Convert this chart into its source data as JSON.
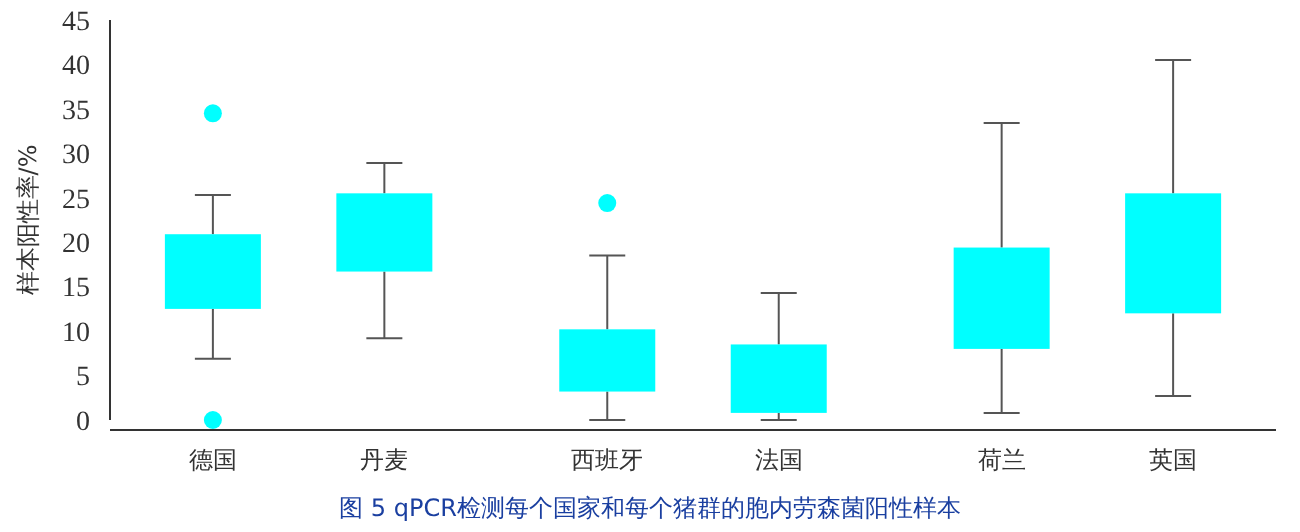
{
  "chart_data": {
    "type": "box",
    "title": "图 5 qPCR检测每个国家和每个猪群的胞内劳森菌阳性样本",
    "ylabel": "样本阳性率/%",
    "categories": [
      "德国",
      "丹麦",
      "西班牙",
      "法国",
      "荷兰",
      "英国"
    ],
    "color": "#00ffff",
    "ylim": [
      0,
      45
    ],
    "yticks": [
      0,
      5,
      10,
      15,
      20,
      25,
      30,
      35,
      40,
      45
    ],
    "grid": false,
    "boxes": [
      {
        "low": 6.9,
        "q1": 12.5,
        "q3": 20.9,
        "high": 25.3,
        "outliers": [
          34.5,
          0
        ]
      },
      {
        "low": 9.2,
        "q1": 16.7,
        "q3": 25.5,
        "high": 28.9
      },
      {
        "low": 0,
        "q1": 3.2,
        "q3": 10.2,
        "high": 18.5,
        "outliers": [
          24.4
        ]
      },
      {
        "low": 0,
        "q1": 0.8,
        "q3": 8.5,
        "high": 14.3
      },
      {
        "low": 0.8,
        "q1": 8.0,
        "q3": 19.4,
        "high": 33.4
      },
      {
        "low": 2.7,
        "q1": 12.0,
        "q3": 25.5,
        "high": 40.5
      }
    ]
  }
}
